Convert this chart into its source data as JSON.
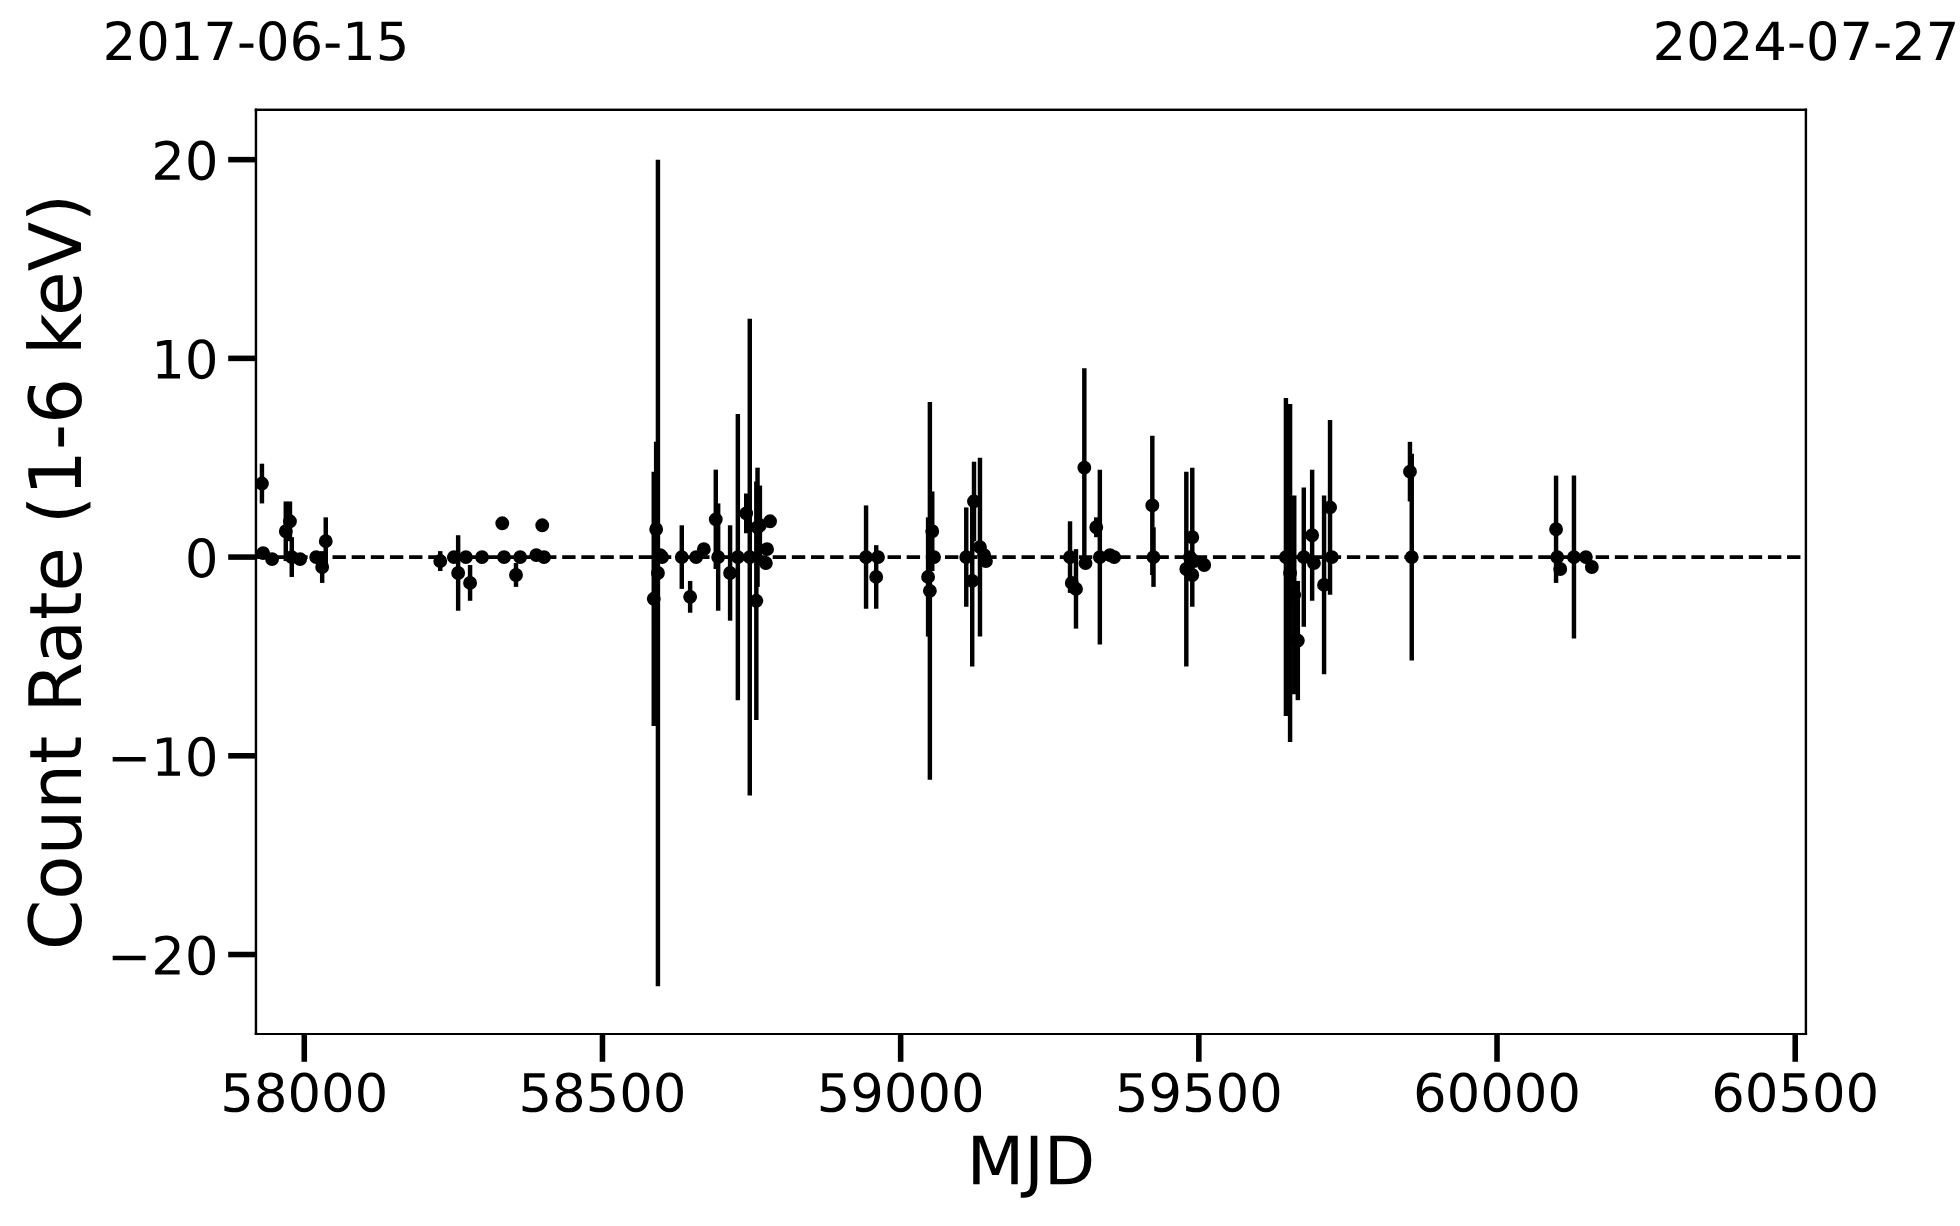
{
  "chart_data": {
    "type": "scatter",
    "xlabel": "MJD",
    "ylabel": "Count Rate (1-6 keV)",
    "xlim": [
      57919,
      60518
    ],
    "xticks": [
      58000,
      58500,
      59000,
      59500,
      60000,
      60500
    ],
    "x2lim": [
      "2017-06-15",
      "2024-07-27"
    ],
    "x2ticks": [
      "2017-06-15",
      "2024-07-27"
    ],
    "ylim": [
      -24,
      22.5
    ],
    "yticks": [
      {
        "value": -20,
        "label": "−20"
      },
      {
        "value": -10,
        "label": "−10"
      },
      0,
      10,
      20
    ],
    "marker": "circle",
    "grid": false,
    "ref_lines": [
      {
        "axis": "y",
        "value": 0,
        "color": "#000000",
        "line_style": "dashed"
      }
    ],
    "series": [
      {
        "color": "#000000",
        "x": [
          57929,
          57931,
          57946,
          57969,
          57976,
          57979,
          57993,
          58020,
          58030,
          58036,
          58228,
          58251,
          58258,
          58271,
          58278,
          58298,
          58332,
          58335,
          58355,
          58362,
          58389,
          58399,
          58402,
          58586,
          58590,
          58593,
          58597,
          58600,
          58633,
          58647,
          58657,
          58670,
          58690,
          58694,
          58714,
          58727,
          58741,
          58747,
          58758,
          58760,
          58764,
          58774,
          58776,
          58781,
          58942,
          58959,
          58962,
          59046,
          59049,
          59053,
          59056,
          59110,
          59120,
          59123,
          59133,
          59140,
          59143,
          59284,
          59287,
          59294,
          59308,
          59310,
          59328,
          59334,
          59351,
          59358,
          59422,
          59424,
          59479,
          59485,
          59489,
          59489,
          59492,
          59509,
          59646,
          59653,
          59660,
          59666,
          59676,
          59690,
          59693,
          59710,
          59720,
          59723,
          59854,
          59857,
          60099,
          60101,
          60106,
          60129,
          60149,
          60159
        ],
        "values": [
          3.7,
          0.2,
          -0.1,
          1.3,
          1.8,
          0,
          -0.1,
          0,
          -0.5,
          0.8,
          -0.2,
          0,
          -0.8,
          0,
          -1.3,
          0,
          1.7,
          0,
          -0.9,
          0,
          0.1,
          1.6,
          0,
          -2.1,
          1.4,
          -0.8,
          0.1,
          0,
          0,
          -2.0,
          0,
          0.4,
          1.9,
          0,
          -0.8,
          0,
          2.2,
          0,
          -2.2,
          1.5,
          1.6,
          -0.3,
          0.4,
          1.8,
          0,
          -1.0,
          0,
          -1.0,
          -1.7,
          1.3,
          0,
          0,
          -1.2,
          2.8,
          0.5,
          0.1,
          -0.2,
          0,
          -1.3,
          -1.6,
          4.5,
          -0.3,
          1.5,
          0,
          0.1,
          0,
          2.6,
          0,
          -0.6,
          0,
          1.0,
          -0.9,
          -0.2,
          -0.4,
          0,
          -0.8,
          -1.9,
          -4.2,
          0,
          1.1,
          -0.3,
          -1.4,
          2.5,
          0,
          4.3,
          0,
          1.4,
          0,
          -0.6,
          0,
          0,
          -0.5
        ],
        "errors": [
          1.0,
          0.3,
          0.3,
          1.5,
          1.0,
          1.0,
          0.3,
          0.3,
          0.8,
          1.2,
          0.5,
          0.3,
          1.9,
          0.3,
          0.9,
          0.3,
          0.3,
          0.3,
          0.6,
          0.3,
          0.3,
          0.3,
          0.3,
          6.4,
          4.4,
          20.8,
          0.3,
          0.3,
          1.6,
          0.8,
          0.3,
          0.3,
          2.5,
          2.7,
          2.4,
          7.2,
          1.0,
          12.0,
          6.0,
          3.0,
          2.0,
          0.3,
          0.3,
          0.3,
          2.6,
          1.6,
          0.3,
          3.0,
          9.5,
          2.0,
          0.3,
          2.5,
          4.3,
          2.0,
          4.5,
          0.3,
          0.3,
          1.8,
          0.3,
          2.0,
          5.0,
          0.3,
          0.5,
          4.4,
          0.3,
          0.3,
          3.5,
          1.5,
          4.9,
          0.3,
          3.5,
          0.3,
          0.3,
          0.3,
          8.0,
          8.5,
          5.0,
          3.0,
          3.5,
          3.3,
          0.3,
          4.5,
          4.4,
          0.3,
          1.5,
          5.2,
          2.7,
          0.3,
          0.3,
          4.1,
          0.3,
          0.3
        ]
      }
    ]
  }
}
